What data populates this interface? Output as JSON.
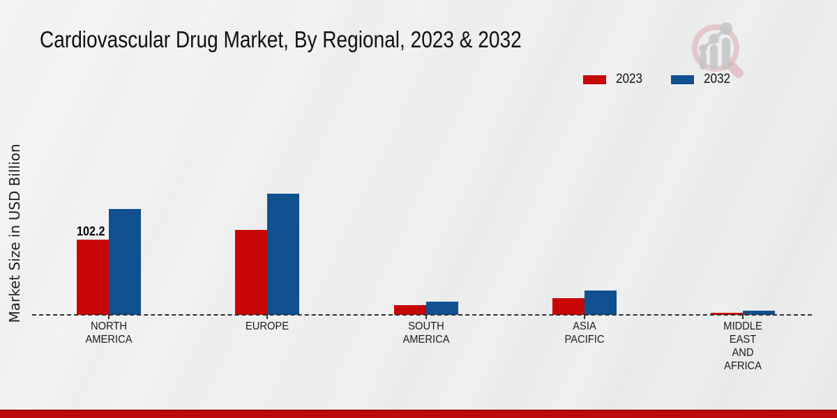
{
  "page": {
    "title": "Cardiovascular Drug Market, By Regional, 2023 & 2032"
  },
  "y_axis": {
    "label": "Market Size in USD Billion"
  },
  "legend": {
    "items": [
      {
        "label": "2023",
        "color": "#c80606"
      },
      {
        "label": "2032",
        "color": "#10508f"
      }
    ]
  },
  "chart_data": {
    "type": "bar",
    "title": "Cardiovascular Drug Market, By Regional, 2023 & 2032",
    "ylabel": "Market Size in USD Billion",
    "ylim": [
      0,
      180
    ],
    "grid": false,
    "baseline_style": "dashed",
    "legend_position": "top-right",
    "categories": [
      [
        "NORTH",
        "AMERICA"
      ],
      [
        "EUROPE"
      ],
      [
        "SOUTH",
        "AMERICA"
      ],
      [
        "ASIA",
        "PACIFIC"
      ],
      [
        "MIDDLE",
        "EAST",
        "AND",
        "AFRICA"
      ]
    ],
    "series": [
      {
        "name": "2023",
        "color": "#c80606",
        "values": [
          102.2,
          115.4,
          13.2,
          22.7,
          2.8
        ]
      },
      {
        "name": "2032",
        "color": "#10508f",
        "values": [
          143.8,
          164.7,
          18.0,
          33.1,
          5.7
        ]
      }
    ],
    "data_labels": [
      {
        "category_index": 0,
        "series_index": 0,
        "text": "102.2"
      }
    ]
  },
  "watermark": {
    "icon": "magnifier-bar-chart-logo"
  },
  "footer": {
    "accent_color": "#bd0a0a",
    "border_color": "#970707"
  }
}
